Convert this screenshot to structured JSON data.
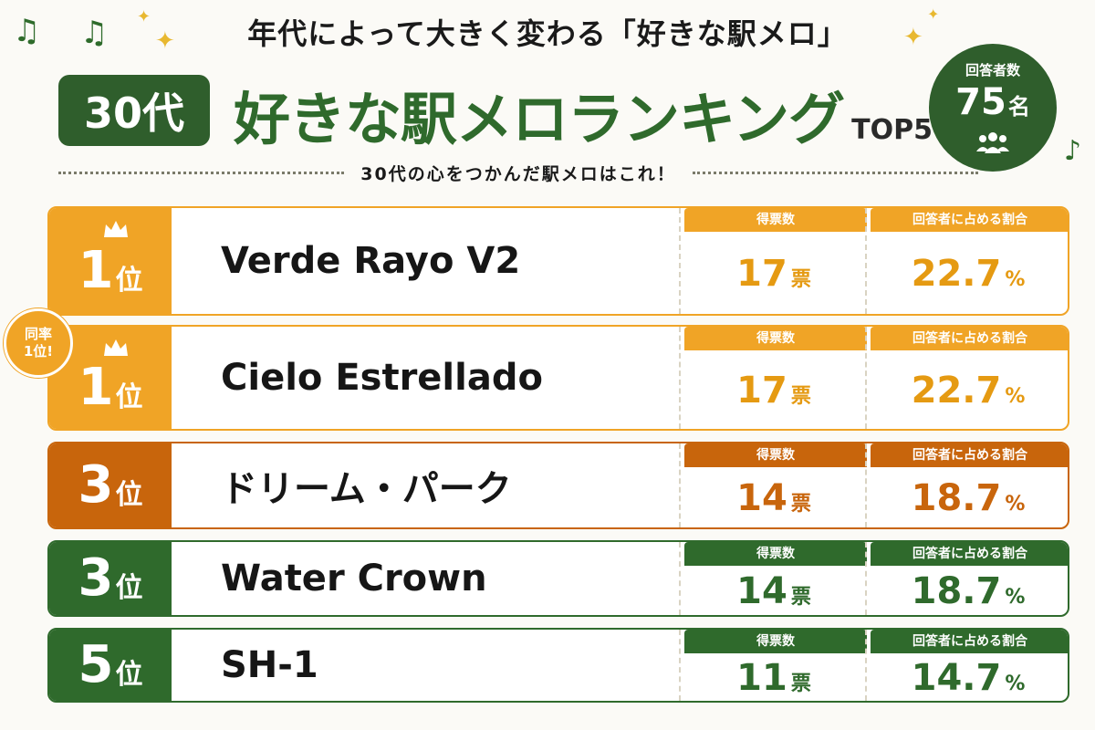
{
  "header": {
    "title": "年代によって大きく変わる「好きな駅メロ」",
    "age_group": "30代",
    "main_title": "好きな駅メロランキング",
    "top_label": "TOP5",
    "subtitle": "30代の心をつかんだ駅メロはこれ！"
  },
  "respondents": {
    "label": "回答者数",
    "count": "75",
    "unit": "名",
    "icon": "people-icon"
  },
  "tie_badge": {
    "line1": "同率",
    "line2": "1位!"
  },
  "columns": {
    "votes": "得票数",
    "share": "回答者に占める割合"
  },
  "units": {
    "votes": "票",
    "percent": "%"
  },
  "ranking": [
    {
      "rank": "1",
      "rank_suffix": "位",
      "song": "Verde Rayo V2",
      "votes": "17",
      "share": "22.7",
      "crown": true,
      "color": "#f0a426",
      "value_color": "#e59a12"
    },
    {
      "rank": "1",
      "rank_suffix": "位",
      "song": "Cielo Estrellado",
      "votes": "17",
      "share": "22.7",
      "crown": true,
      "color": "#f0a426",
      "value_color": "#e59a12"
    },
    {
      "rank": "3",
      "rank_suffix": "位",
      "song": "ドリーム・パーク",
      "votes": "14",
      "share": "18.7",
      "crown": false,
      "color": "#c8650c",
      "value_color": "#c8650c"
    },
    {
      "rank": "3",
      "rank_suffix": "位",
      "song": "Water Crown",
      "votes": "14",
      "share": "18.7",
      "crown": false,
      "color": "#2f6a2c",
      "value_color": "#2f6a2c"
    },
    {
      "rank": "5",
      "rank_suffix": "位",
      "song": "SH-1",
      "votes": "11",
      "share": "14.7",
      "crown": false,
      "color": "#2f6a2c",
      "value_color": "#2f6a2c"
    }
  ]
}
